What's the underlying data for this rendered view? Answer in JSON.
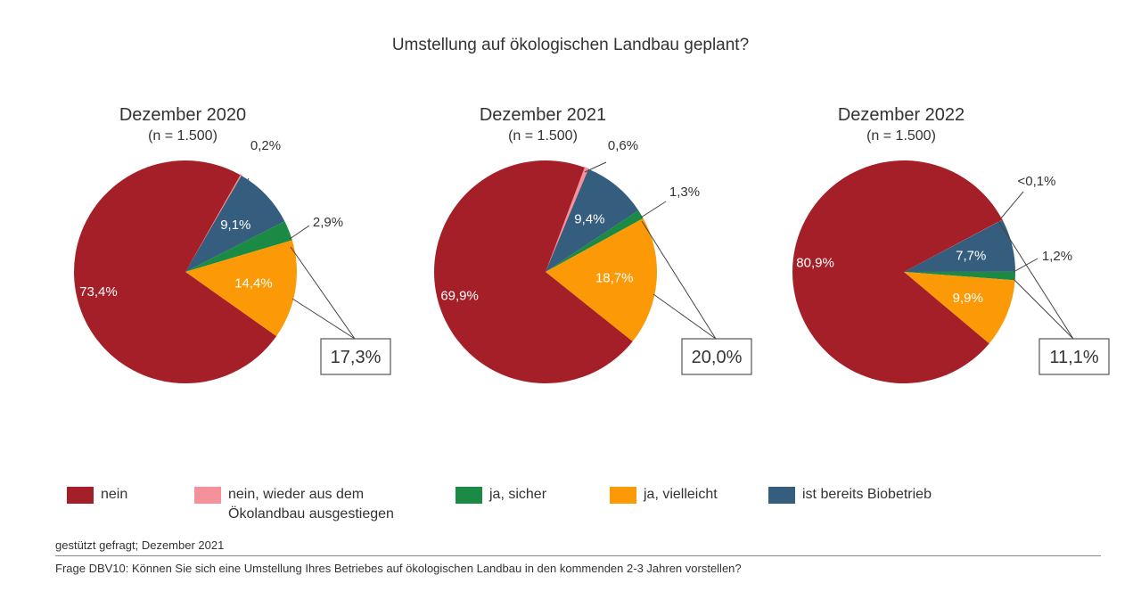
{
  "chart_data": [
    {
      "type": "pie",
      "title": "Dezember 2020",
      "subtitle": "(n = 1.500)",
      "slices": [
        {
          "category": "nein, wieder aus dem Ökolandbau ausgestiegen",
          "value": 0.2,
          "label": "0,2%"
        },
        {
          "category": "ist bereits Biobetrieb",
          "value": 9.1,
          "label": "9,1%"
        },
        {
          "category": "ja, sicher",
          "value": 2.9,
          "label": "2,9%"
        },
        {
          "category": "ja, vielleicht",
          "value": 14.4,
          "label": "14,4%"
        },
        {
          "category": "nein",
          "value": 73.4,
          "label": "73,4%"
        }
      ],
      "total_label": "17,3%"
    },
    {
      "type": "pie",
      "title": "Dezember 2021",
      "subtitle": "(n = 1.500)",
      "slices": [
        {
          "category": "nein, wieder aus dem Ökolandbau ausgestiegen",
          "value": 0.6,
          "label": "0,6%"
        },
        {
          "category": "ist bereits Biobetrieb",
          "value": 9.4,
          "label": "9,4%"
        },
        {
          "category": "ja, sicher",
          "value": 1.3,
          "label": "1,3%"
        },
        {
          "category": "ja, vielleicht",
          "value": 18.7,
          "label": "18,7%"
        },
        {
          "category": "nein",
          "value": 69.9,
          "label": "69,9%"
        }
      ],
      "total_label": "20,0%"
    },
    {
      "type": "pie",
      "title": "Dezember 2022",
      "subtitle": "(n = 1.500)",
      "slices": [
        {
          "category": "nein, wieder aus dem Ökolandbau ausgestiegen",
          "value": 0.05,
          "label": "<0,1%"
        },
        {
          "category": "ist bereits Biobetrieb",
          "value": 7.7,
          "label": "7,7%"
        },
        {
          "category": "ja, sicher",
          "value": 1.2,
          "label": "1,2%"
        },
        {
          "category": "ja, vielleicht",
          "value": 9.9,
          "label": "9,9%"
        },
        {
          "category": "nein",
          "value": 80.9,
          "label": "80,9%"
        }
      ],
      "total_label": "11,1%"
    }
  ],
  "title": "Umstellung auf ökologischen Landbau geplant?",
  "colors": {
    "nein, wieder aus dem Ökolandbau ausgestiegen": "#f4919a",
    "ist bereits Biobetrieb": "#355e7e",
    "ja, sicher": "#1a8a44",
    "ja, vielleicht": "#fb9a06",
    "nein": "#a51f28"
  },
  "legend": [
    {
      "label": "nein",
      "color": "#a51f28"
    },
    {
      "label": "nein, wieder aus dem Ökolandbau ausgestiegen",
      "color": "#f4919a"
    },
    {
      "label": "ja, sicher",
      "color": "#1a8a44"
    },
    {
      "label": "ja, vielleicht",
      "color": "#fb9a06"
    },
    {
      "label": "ist bereits Biobetrieb",
      "color": "#355e7e"
    }
  ],
  "footer": {
    "note": "gestützt gefragt; Dezember 2021",
    "question": "Frage DBV10: Können Sie sich eine Umstellung Ihres Betriebes auf ökologischen Landbau in den kommenden 2-3 Jahren vorstellen?"
  }
}
